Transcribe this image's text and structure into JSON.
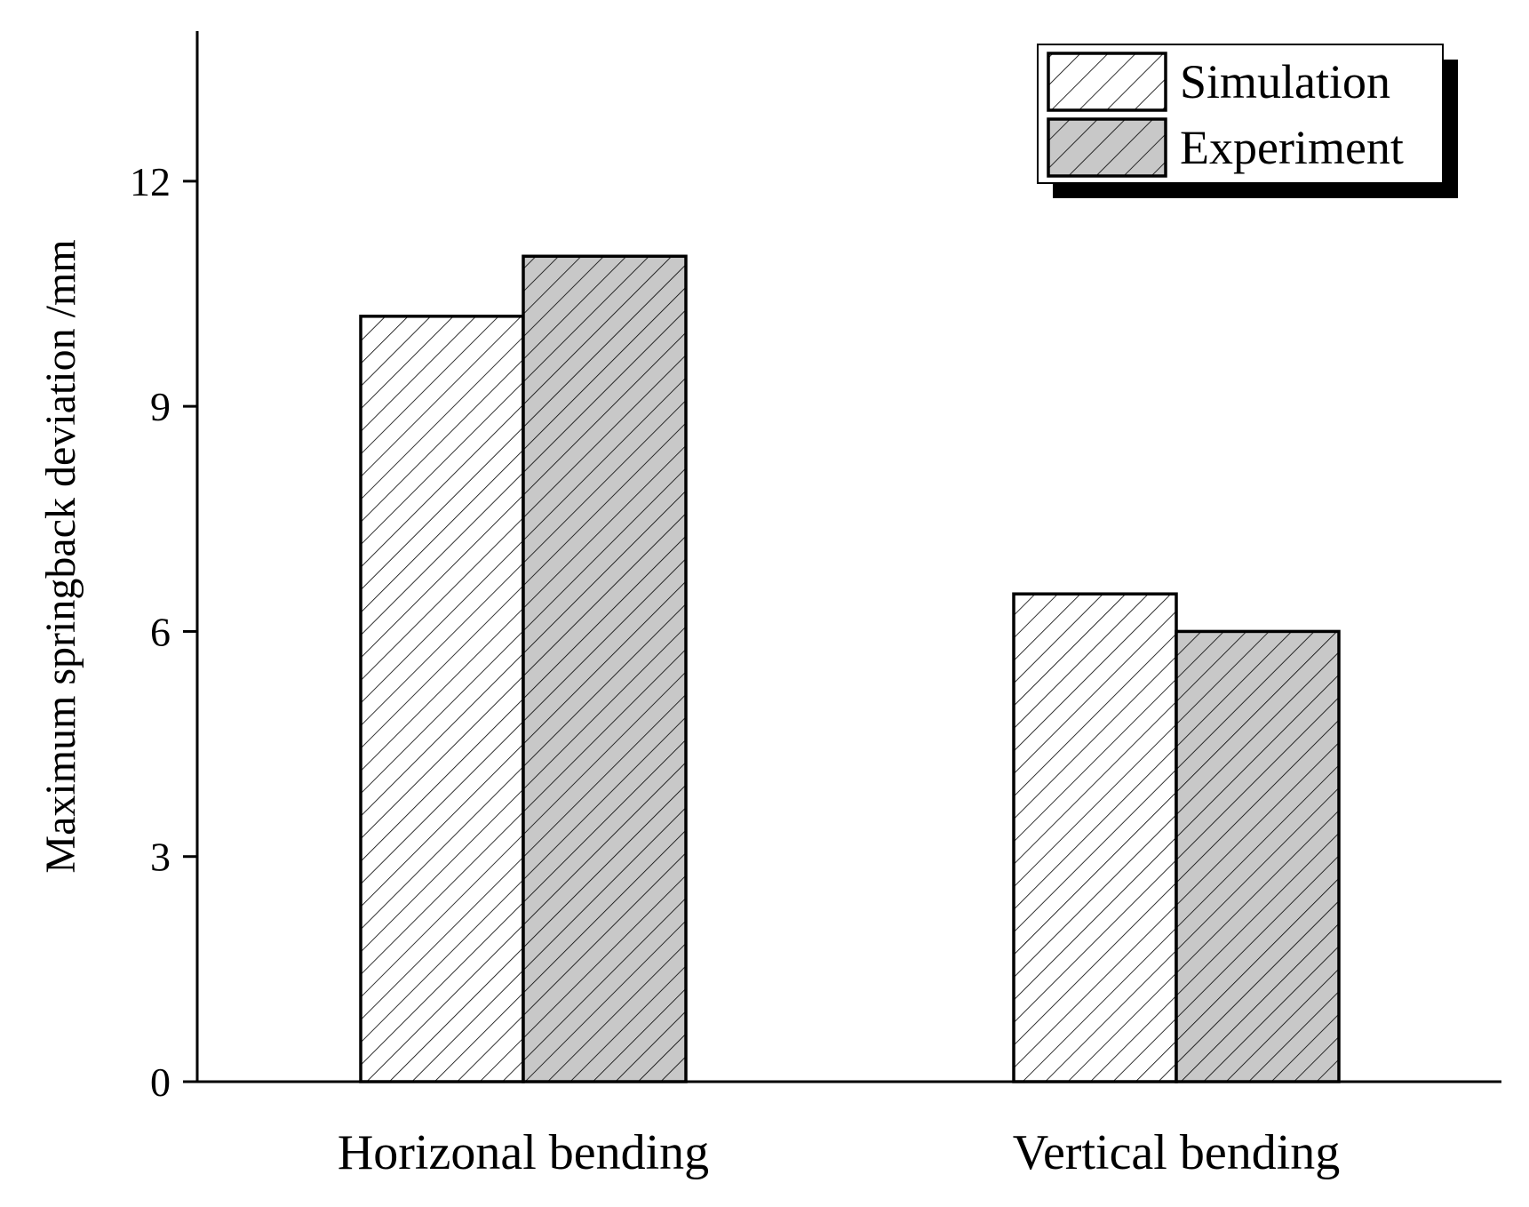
{
  "chart_data": {
    "type": "bar",
    "categories": [
      "Horizonal bending",
      "Vertical bending"
    ],
    "series": [
      {
        "name": "Simulation",
        "values": [
          10.2,
          6.5
        ],
        "fill": "#ffffff"
      },
      {
        "name": "Experiment",
        "values": [
          11.0,
          6.0
        ],
        "fill": "#c8c8c8"
      }
    ],
    "xlabel": "",
    "ylabel": "Maximum springback deviation /mm",
    "ylim": [
      0,
      14
    ],
    "yticks": [
      0,
      3,
      6,
      9,
      12
    ],
    "grid": false,
    "legend": "top-right",
    "hatch": "diagonal"
  }
}
